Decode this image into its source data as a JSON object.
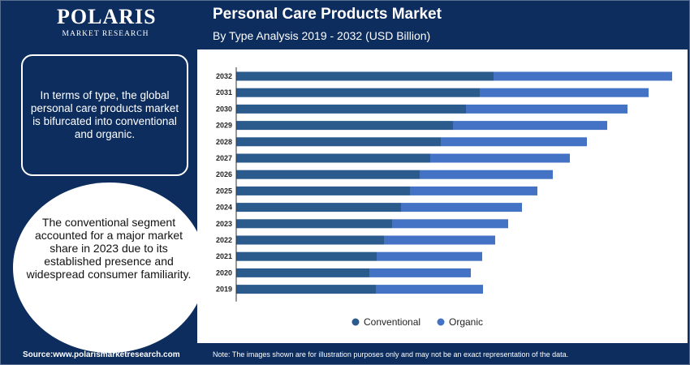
{
  "logo": {
    "name": "POLARIS",
    "sub": "MARKET RESEARCH"
  },
  "header": {
    "title": "Personal Care Products Market",
    "subtitle": "By Type Analysis 2019 - 2032 (USD Billion)"
  },
  "panel": {
    "text": "In terms of type, the global personal care products market is bifurcated into conventional and organic."
  },
  "highlight": {
    "text": "The conventional segment accounted for a major market share in 2023 due to its established presence and widespread consumer familiarity."
  },
  "footer": {
    "source": "Source:www.polarismarketresearch.com",
    "note": "Note: The images shown are for illustration purposes only and may not be an exact representation of the data."
  },
  "chart_data": {
    "type": "bar",
    "orientation": "horizontal",
    "stacked": true,
    "categories": [
      "2032",
      "2031",
      "2030",
      "2029",
      "2028",
      "2027",
      "2026",
      "2025",
      "2024",
      "2023",
      "2022",
      "2021",
      "2020",
      "2019"
    ],
    "series": [
      {
        "name": "Conventional",
        "color": "#2b5a8c",
        "values": [
          317,
          300,
          283,
          267,
          252,
          239,
          226,
          214,
          203,
          192,
          182,
          173,
          164,
          172
        ]
      },
      {
        "name": "Organic",
        "color": "#4472c4",
        "values": [
          220,
          208,
          199,
          190,
          180,
          172,
          164,
          157,
          149,
          143,
          137,
          130,
          125,
          132
        ]
      }
    ],
    "legend": "bottom-center",
    "grid": false
  }
}
